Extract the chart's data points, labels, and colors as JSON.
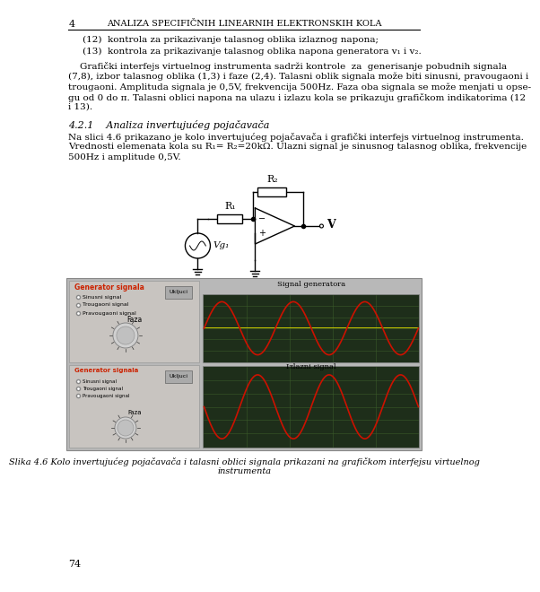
{
  "page_number_top": "4",
  "header_text": "ANALIZA SPECIFIČNIH LINEARNIH ELEKTRONSKIH KOLA",
  "page_number_bottom": "74",
  "background_color": "#ffffff",
  "text_color": "#000000",
  "panel_bg": "#c0bebe",
  "panel_left_title_color": "#cc2200",
  "scope_bg": "#1e2e1a",
  "scope_grid": "#3a5a2a",
  "wave_red": "#cc1100",
  "wave_yellow": "#cccc00",
  "figure_caption": "Slika 4.6 Kolo invertujućeg pojačavača i talasni oblici signala prikazani na grafičkom interfejsu virtuelnog\ninstrumenta"
}
